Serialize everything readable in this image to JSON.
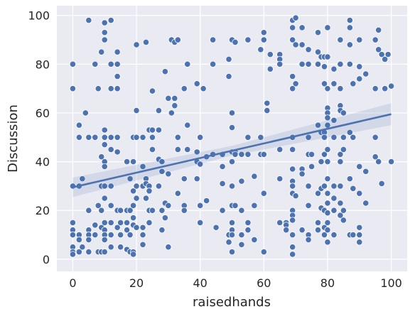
{
  "chart_data": {
    "type": "scatter",
    "x_label": "raisedhands",
    "y_label": "Discussion",
    "xlim": [
      -5,
      105
    ],
    "ylim": [
      -5,
      104
    ],
    "xticks": [
      0,
      20,
      40,
      60,
      80,
      100
    ],
    "yticks": [
      0,
      20,
      40,
      60,
      80,
      100
    ],
    "grid": true,
    "color": "#4c72b0",
    "x": [
      0,
      0,
      0,
      0,
      0,
      0,
      0,
      0,
      0,
      2,
      2,
      2,
      2,
      2,
      2,
      3,
      3,
      4,
      5,
      5,
      5,
      5,
      5,
      5,
      5,
      7,
      7,
      7,
      7,
      8,
      8,
      8,
      9,
      9,
      9,
      9,
      9,
      9,
      10,
      10,
      10,
      10,
      10,
      10,
      10,
      10,
      10,
      10,
      10,
      10,
      10,
      10,
      10,
      12,
      12,
      12,
      12,
      12,
      12,
      12,
      12,
      12,
      12,
      14,
      14,
      14,
      14,
      14,
      14,
      14,
      14,
      15,
      15,
      15,
      15,
      17,
      17,
      17,
      17,
      17,
      18,
      18,
      18,
      18,
      19,
      19,
      19,
      19,
      19,
      19,
      19,
      19,
      20,
      20,
      20,
      20,
      20,
      20,
      22,
      22,
      22,
      22,
      22,
      22,
      23,
      23,
      23,
      23,
      24,
      24,
      24,
      24,
      24,
      25,
      25,
      25,
      25,
      25,
      27,
      27,
      27,
      27,
      28,
      28,
      28,
      28,
      29,
      29,
      29,
      30,
      30,
      30,
      30,
      31,
      31,
      32,
      32,
      32,
      33,
      33,
      33,
      33,
      35,
      35,
      35,
      35,
      36,
      36,
      36,
      39,
      39,
      39,
      39,
      40,
      40,
      40,
      40,
      41,
      42,
      42,
      44,
      44,
      44,
      45,
      47,
      47,
      47,
      47,
      49,
      49,
      49,
      49,
      50,
      50,
      50,
      50,
      50,
      50,
      50,
      50,
      50,
      50,
      50,
      51,
      51,
      51,
      51,
      53,
      53,
      53,
      53,
      53,
      55,
      55,
      55,
      55,
      55,
      57,
      57,
      57,
      59,
      59,
      59,
      60,
      60,
      60,
      60,
      60,
      61,
      61,
      62,
      62,
      65,
      65,
      65,
      65,
      65,
      65,
      67,
      67,
      67,
      69,
      69,
      69,
      69,
      69,
      69,
      69,
      69,
      69,
      69,
      69,
      69,
      69,
      69,
      69,
      69,
      69,
      70,
      70,
      70,
      70,
      72,
      72,
      72,
      72,
      72,
      72,
      74,
      74,
      74,
      74,
      74,
      74,
      74,
      74,
      75,
      75,
      77,
      77,
      77,
      77,
      77,
      77,
      77,
      78,
      78,
      78,
      78,
      78,
      79,
      79,
      79,
      79,
      79,
      79,
      79,
      79,
      79,
      79,
      80,
      80,
      80,
      80,
      80,
      80,
      80,
      80,
      80,
      80,
      80,
      80,
      80,
      80,
      80,
      80,
      82,
      82,
      82,
      82,
      82,
      82,
      82,
      82,
      84,
      84,
      84,
      84,
      84,
      84,
      84,
      84,
      84,
      84,
      85,
      85,
      85,
      85,
      85,
      87,
      87,
      87,
      87,
      87,
      87,
      87,
      88,
      88,
      88,
      88,
      90,
      90,
      90,
      90,
      90,
      90,
      90,
      90,
      92,
      92,
      92,
      95,
      95,
      95,
      95,
      96,
      96,
      96,
      97,
      97,
      98,
      98,
      99,
      100,
      100
    ],
    "values": [
      80,
      70,
      30,
      15,
      12,
      10,
      5,
      3,
      2,
      55,
      50,
      30,
      10,
      8,
      3,
      33,
      5,
      60,
      98,
      50,
      20,
      12,
      10,
      8,
      3,
      80,
      50,
      14,
      10,
      70,
      22,
      3,
      85,
      42,
      30,
      20,
      13,
      3,
      97,
      93,
      90,
      53,
      50,
      47,
      40,
      38,
      30,
      25,
      15,
      12,
      10,
      8,
      3,
      98,
      80,
      70,
      50,
      45,
      30,
      22,
      15,
      10,
      5,
      85,
      80,
      75,
      70,
      50,
      44,
      20,
      13,
      20,
      15,
      10,
      5,
      40,
      20,
      15,
      12,
      4,
      33,
      20,
      10,
      3,
      50,
      40,
      28,
      22,
      17,
      14,
      3,
      2,
      88,
      61,
      50,
      30,
      25,
      13,
      50,
      38,
      30,
      13,
      10,
      6,
      89,
      33,
      31,
      25,
      53,
      30,
      28,
      20,
      15,
      69,
      50,
      53,
      45,
      20,
      61,
      53,
      41,
      30,
      40,
      36,
      20,
      12,
      77,
      23,
      17,
      66,
      35,
      22,
      5,
      90,
      60,
      89,
      66,
      63,
      90,
      50,
      45,
      27,
      70,
      33,
      22,
      20,
      80,
      55,
      45,
      72,
      44,
      40,
      33,
      50,
      39,
      22,
      15,
      70,
      42,
      24,
      90,
      80,
      43,
      13,
      43,
      38,
      31,
      20,
      75,
      82,
      10,
      7,
      90,
      60,
      54,
      44,
      40,
      30,
      22,
      15,
      12,
      10,
      3,
      89,
      44,
      43,
      22,
      43,
      32,
      20,
      10,
      6,
      90,
      50,
      43,
      15,
      12,
      34,
      22,
      8,
      86,
      50,
      43,
      93,
      90,
      43,
      27,
      3,
      64,
      61,
      84,
      78,
      84,
      82,
      80,
      45,
      33,
      15,
      15,
      14,
      12,
      98,
      95,
      90,
      75,
      70,
      50,
      45,
      37,
      32,
      30,
      27,
      20,
      18,
      16,
      10,
      5,
      2,
      99,
      88,
      72,
      26,
      95,
      88,
      80,
      37,
      35,
      12,
      86,
      80,
      50,
      43,
      30,
      22,
      10,
      8,
      43,
      38,
      93,
      85,
      80,
      55,
      27,
      15,
      12,
      83,
      52,
      40,
      29,
      21,
      83,
      79,
      72,
      52,
      50,
      43,
      30,
      20,
      13,
      10,
      95,
      83,
      70,
      62,
      60,
      58,
      55,
      45,
      40,
      33,
      27,
      23,
      19,
      15,
      12,
      7,
      78,
      72,
      57,
      50,
      30,
      25,
      20,
      10,
      90,
      80,
      70,
      63,
      61,
      43,
      40,
      30,
      23,
      18,
      60,
      50,
      45,
      20,
      16,
      98,
      95,
      88,
      80,
      52,
      33,
      10,
      72,
      50,
      29,
      10,
      90,
      79,
      74,
      38,
      27,
      13,
      10,
      7,
      76,
      36,
      23,
      90,
      70,
      50,
      42,
      94,
      86,
      40,
      84,
      31,
      82,
      70,
      84,
      71,
      40
    ],
    "regression": {
      "x": [
        0,
        50,
        100
      ],
      "values": [
        29.5,
        44.5,
        59.5
      ],
      "ci_lower": [
        25.5,
        42.5,
        55
      ],
      "ci_upper": [
        33.5,
        46.5,
        64
      ],
      "color": "#4c72b0"
    }
  }
}
